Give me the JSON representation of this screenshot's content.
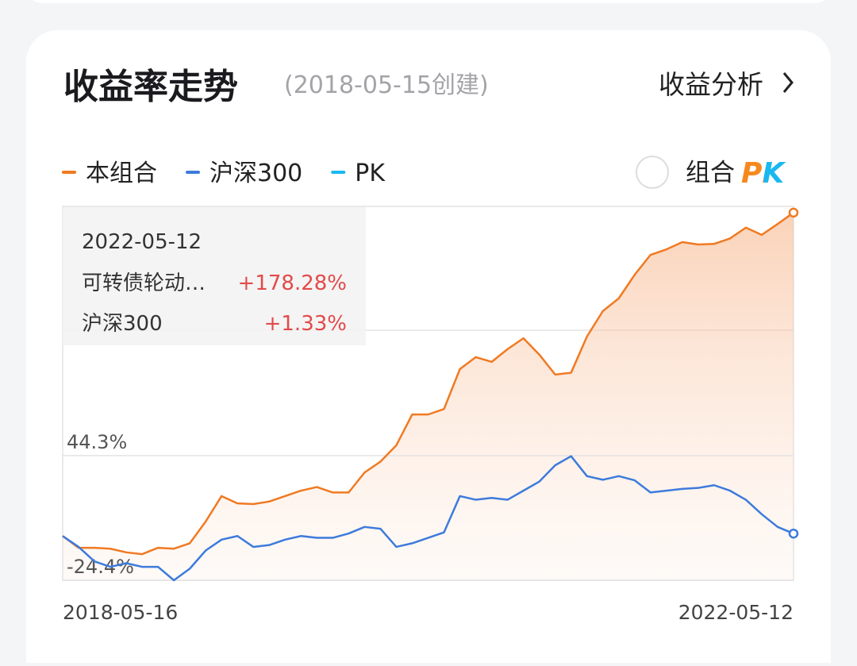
{
  "header": {
    "title": "收益率走势",
    "subtitle": "(2018-05-15创建)",
    "link": "收益分析"
  },
  "pk_toggle": {
    "label": "组合",
    "badge": "PK"
  },
  "tooltip": {
    "date": "2022-05-12",
    "rows": [
      {
        "name": "可转债轮动…",
        "value": "+178.28%"
      },
      {
        "name": "沪深300",
        "value": "+1.33%"
      }
    ]
  },
  "chart_data": {
    "type": "line",
    "categories": [
      "2018-05-16",
      null,
      null,
      null,
      null,
      null,
      null,
      null,
      null,
      null,
      null,
      null,
      null,
      null,
      null,
      null,
      null,
      null,
      null,
      null,
      null,
      null,
      null,
      null,
      null,
      null,
      null,
      null,
      null,
      null,
      null,
      null,
      null,
      null,
      null,
      null,
      null,
      null,
      null,
      null,
      null,
      null,
      null,
      null,
      null,
      null,
      "2022-05-12"
    ],
    "series": [
      {
        "name": "本组合",
        "color": "#f07a22",
        "values": [
          0,
          -6.5,
          -6.5,
          -7,
          -9,
          -10,
          -6.5,
          -7,
          -4,
          8,
          22,
          18,
          17.6,
          19,
          22,
          25,
          27,
          24,
          24,
          35,
          41,
          50,
          67,
          67,
          70,
          92,
          98.6,
          96,
          103,
          109,
          100,
          89,
          90,
          110,
          124,
          131,
          144,
          155,
          158,
          162,
          160.7,
          161,
          164,
          170,
          166,
          172,
          178.28
        ]
      },
      {
        "name": "沪深300",
        "color": "#3d7bdc",
        "values": [
          0,
          -6,
          -14,
          -17,
          -15,
          -17,
          -17,
          -24.4,
          -18,
          -8,
          -2,
          0,
          -6,
          -5,
          -2,
          0,
          -1,
          -1,
          1.4,
          5,
          4,
          -6,
          -4,
          -1,
          2,
          22,
          20,
          21,
          20,
          25,
          30,
          39,
          44,
          33,
          31,
          33,
          30.7,
          24,
          25,
          26,
          26.5,
          28,
          25,
          20,
          12,
          5,
          1.33
        ]
      },
      {
        "name": "PK",
        "color": "#1ab8f0",
        "values": [
          null,
          null,
          null,
          null,
          null,
          null,
          null,
          null,
          null,
          null,
          null,
          null,
          null,
          null,
          null,
          null,
          null,
          null,
          null,
          null,
          null,
          null,
          null,
          null,
          null,
          null,
          null,
          null,
          null,
          null,
          null,
          null,
          null,
          null,
          null,
          null,
          null,
          null,
          null,
          null,
          null,
          null,
          null,
          null,
          null,
          null,
          null
        ]
      }
    ],
    "ylim": [
      -24.4,
      181.7
    ],
    "yticks": [
      {
        "value": 44.3,
        "label": "44.3%"
      },
      {
        "value": -24.4,
        "label": "-24.4%"
      }
    ],
    "grid": true
  }
}
